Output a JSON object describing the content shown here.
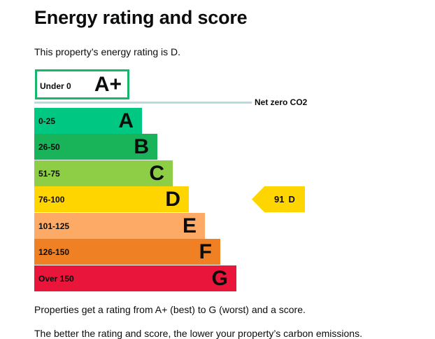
{
  "title": "Energy rating and score",
  "intro": "This property’s energy rating is D.",
  "plus_band": {
    "range": "Under 0",
    "letter": "A+",
    "border_color": "#17b66b"
  },
  "net_zero": {
    "label": "Net zero CO2",
    "line_color": "#b5dde1"
  },
  "bands": [
    {
      "range": "0-25",
      "letter": "A",
      "color": "#00c781"
    },
    {
      "range": "26-50",
      "letter": "B",
      "color": "#19b459"
    },
    {
      "range": "51-75",
      "letter": "C",
      "color": "#8dce46"
    },
    {
      "range": "76-100",
      "letter": "D",
      "color": "#ffd500"
    },
    {
      "range": "101-125",
      "letter": "E",
      "color": "#fcaa65"
    },
    {
      "range": "126-150",
      "letter": "F",
      "color": "#ef8023"
    },
    {
      "range": "Over 150",
      "letter": "G",
      "color": "#e9153b"
    }
  ],
  "current_rating": {
    "score": "91",
    "letter": "D",
    "color": "#ffd500"
  },
  "paragraphs": [
    "Properties get a rating from A+ (best) to G (worst) and a score.",
    "The better the rating and score, the lower your property’s carbon emissions."
  ]
}
